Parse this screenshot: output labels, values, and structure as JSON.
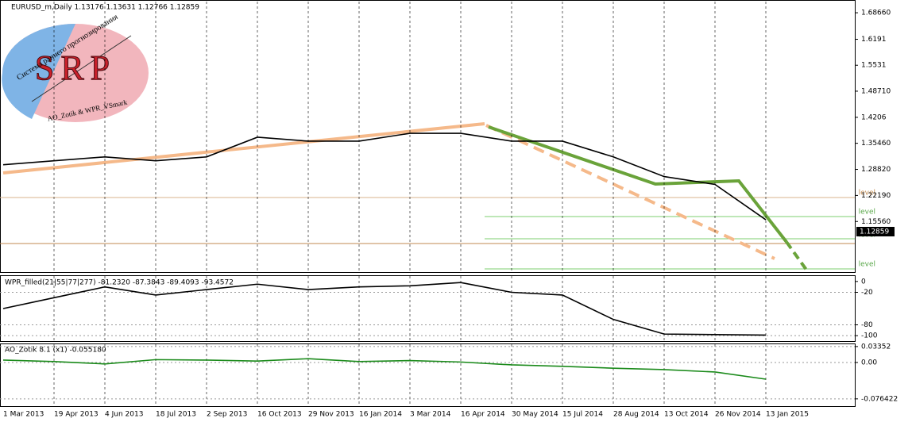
{
  "title": "EURUSD_m,Daily  1.13176 1.13631 1.12766 1.12859",
  "last_price_label": "1.12859",
  "level_labels": [
    "level",
    "level",
    "level",
    "level"
  ],
  "logo": {
    "letters": "SRP",
    "arc_text": "Система раннего прогнозирования",
    "credit": "AO_Zotik & WPR_VSmark"
  },
  "chart_data": [
    {
      "type": "line",
      "name": "price",
      "categories": [
        "1 Mar 2013",
        "19 Apr 2013",
        "4 Jun 2013",
        "18 Jul 2013",
        "2 Sep 2013",
        "16 Oct 2013",
        "29 Nov 2013",
        "16 Jan 2014",
        "3 Mar 2014",
        "16 Apr 2014",
        "30 May 2014",
        "15 Jul 2014",
        "28 Aug 2014",
        "13 Oct 2014",
        "26 Nov 2014",
        "13 Jan 2015"
      ],
      "values": [
        1.3,
        1.31,
        1.32,
        1.31,
        1.32,
        1.37,
        1.36,
        1.36,
        1.38,
        1.38,
        1.36,
        1.36,
        1.32,
        1.27,
        1.25,
        1.16
      ],
      "color": "#000000",
      "ylim": [
        1.027,
        1.715
      ],
      "yticks": [
        {
          "value": 1.6866,
          "label": "1.68660"
        },
        1.6191,
        1.5531,
        {
          "value": 1.4871,
          "label": "1.48710"
        },
        1.4206,
        {
          "value": 1.3546,
          "label": "1.35460"
        },
        {
          "value": 1.2882,
          "label": "1.28820"
        },
        {
          "value": 1.2219,
          "label": "1.22190"
        },
        {
          "value": 1.1556,
          "label": "1.15560"
        }
      ]
    },
    {
      "type": "line",
      "title": "WPR_filled(21|55|77|277) -81.2320 -87.3843 -89.4093 -93.4572",
      "values": [
        -50,
        -30,
        -10,
        -25,
        -15,
        -5,
        -15,
        -10,
        -8,
        -2,
        -20,
        -25,
        -70,
        -97,
        -98,
        -99
      ],
      "color": "#000000",
      "ylim": [
        -110,
        10
      ],
      "yticks": [
        0,
        -20,
        -80,
        -100
      ]
    },
    {
      "type": "line",
      "title": "AO_Zotik 8.1 (x1) -0.055180",
      "values": [
        0.005,
        0.002,
        -0.003,
        0.006,
        0.005,
        0.003,
        0.008,
        0.002,
        0.004,
        0.001,
        -0.005,
        -0.008,
        -0.012,
        -0.015,
        -0.02,
        -0.035
      ],
      "color": "#1a8a1a",
      "ylim": [
        -0.0917,
        0.0383
      ],
      "yticks": [
        0.03352,
        {
          "value": 0,
          "label": "0.00"
        },
        -0.076422
      ]
    }
  ]
}
